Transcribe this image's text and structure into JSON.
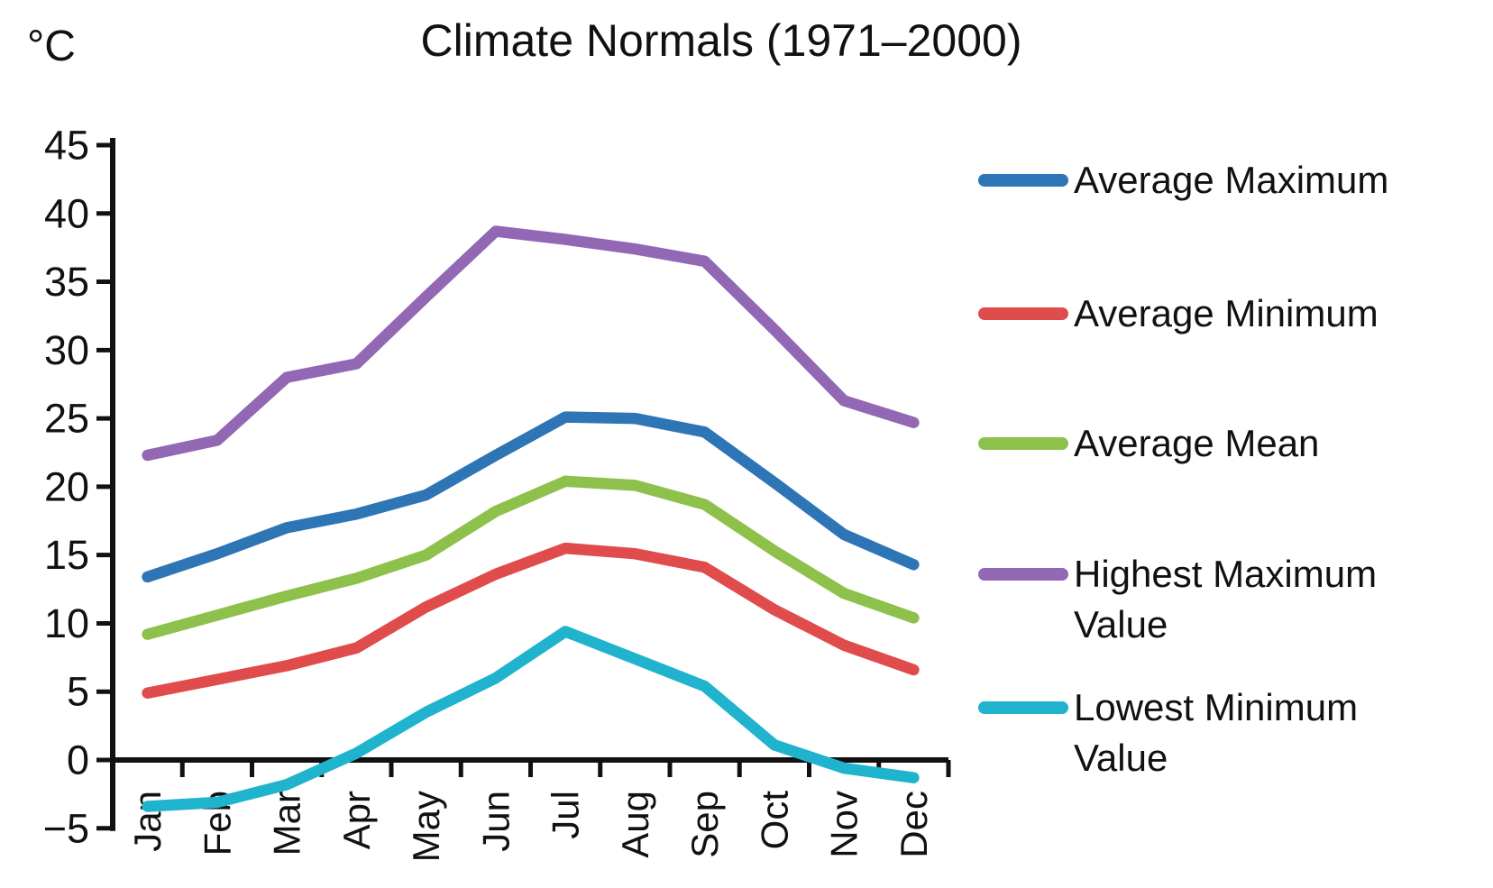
{
  "title": "Climate Normals (1971–2000)",
  "y_axis_unit": "°C",
  "chart_data": {
    "type": "line",
    "title": "Climate Normals (1971–2000)",
    "xlabel": "",
    "ylabel": "°C",
    "categories": [
      "Jan",
      "Feb",
      "Mar",
      "Apr",
      "May",
      "Jun",
      "Jul",
      "Aug",
      "Sep",
      "Oct",
      "Nov",
      "Dec"
    ],
    "series": [
      {
        "name": "Average Maximum",
        "color": "#2E75B6",
        "values": [
          13.4,
          15.1,
          17.0,
          18.0,
          19.4,
          22.3,
          25.1,
          25.0,
          24.0,
          20.3,
          16.5,
          14.3
        ]
      },
      {
        "name": "Average Minimum",
        "color": "#E04B4B",
        "values": [
          4.9,
          5.9,
          6.9,
          8.2,
          11.2,
          13.6,
          15.5,
          15.1,
          14.1,
          11.0,
          8.4,
          6.6
        ]
      },
      {
        "name": "Average Mean",
        "color": "#8DC14C",
        "values": [
          9.2,
          10.6,
          12.0,
          13.3,
          15.0,
          18.2,
          20.4,
          20.1,
          18.7,
          15.3,
          12.2,
          10.4
        ]
      },
      {
        "name": "Highest Maximum Value",
        "color": "#9268B4",
        "values": [
          22.3,
          23.4,
          28.0,
          29.0,
          33.9,
          38.7,
          38.1,
          37.4,
          36.5,
          31.5,
          26.3,
          24.7
        ]
      },
      {
        "name": "Lowest Minimum Value",
        "color": "#20B3CE",
        "values": [
          -3.4,
          -3.1,
          -1.8,
          0.5,
          3.5,
          6.0,
          9.4,
          7.4,
          5.4,
          1.1,
          -0.6,
          -1.3
        ]
      }
    ],
    "ylim": [
      -5,
      45
    ],
    "ytick_step": 5,
    "yticks": [
      45,
      40,
      35,
      30,
      25,
      20,
      15,
      10,
      5,
      0,
      -5
    ],
    "grid": false,
    "legend_position": "right",
    "axis_color": "#111111"
  }
}
